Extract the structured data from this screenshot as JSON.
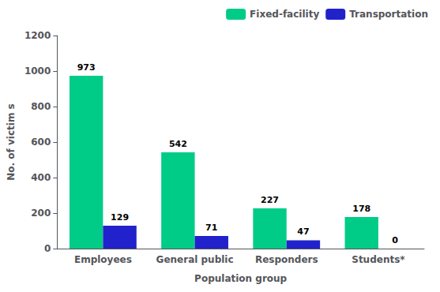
{
  "chart_data": {
    "type": "bar",
    "categories": [
      "Employees",
      "General public",
      "Responders",
      "Students*"
    ],
    "series": [
      {
        "name": "Fixed-facility",
        "color": "#00CC88",
        "values": [
          973,
          542,
          227,
          178
        ]
      },
      {
        "name": "Transportation",
        "color": "#2222CC",
        "values": [
          129,
          71,
          47,
          0
        ]
      }
    ],
    "xlabel": "Population group",
    "ylabel": "No. of victim s",
    "ylim": [
      0,
      1200
    ],
    "yticks": [
      0,
      200,
      400,
      600,
      800,
      1000,
      1200
    ],
    "grid": false,
    "legend": "upper right",
    "data_labels": true
  }
}
